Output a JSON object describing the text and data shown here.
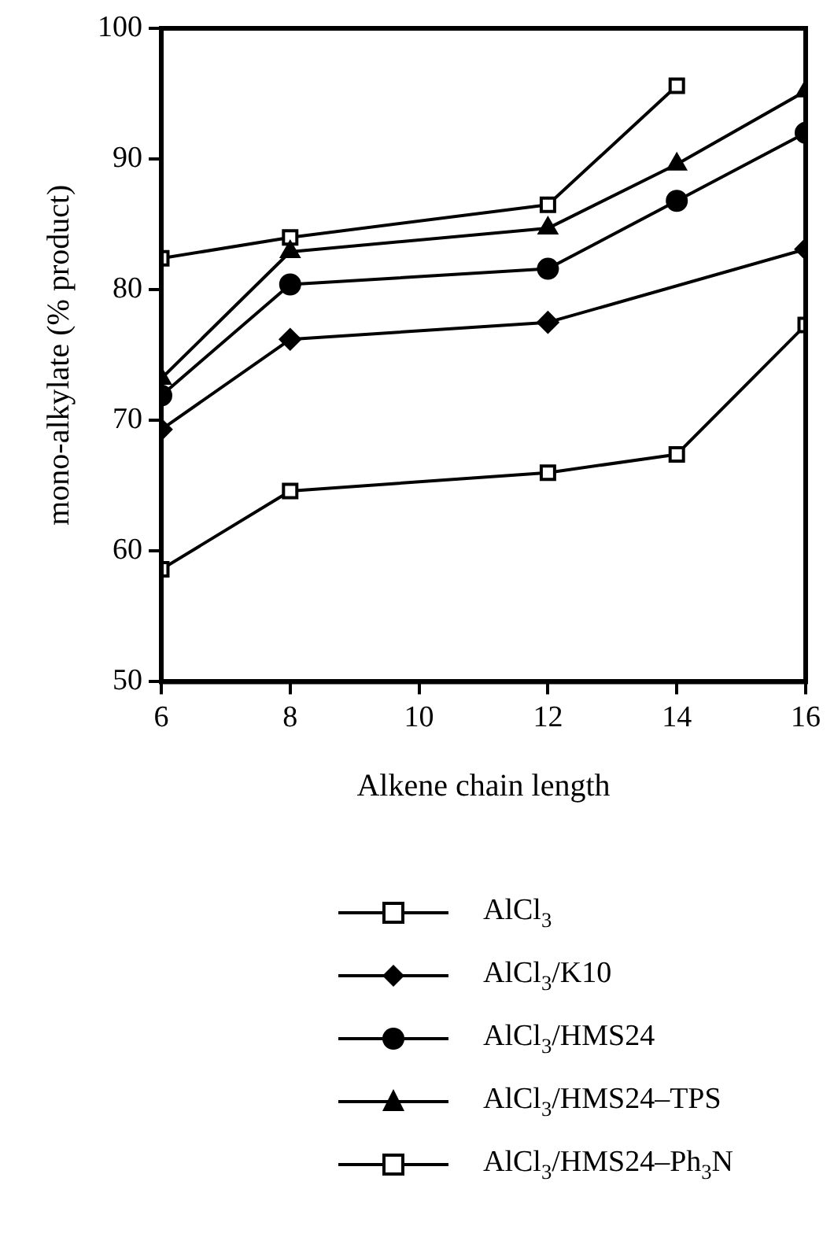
{
  "chart_data": {
    "type": "line",
    "xlabel": "Alkene chain length",
    "ylabel": "mono-alkylate (% product)",
    "xlim": [
      6,
      16
    ],
    "xticks": [
      6,
      8,
      10,
      12,
      14,
      16
    ],
    "ylim": [
      50,
      100
    ],
    "yticks": [
      50,
      60,
      70,
      80,
      90,
      100
    ],
    "grid": false,
    "legend": "bottom",
    "line_style": "solid",
    "series": [
      {
        "name": "AlCl$_{3}$",
        "color": "#000000",
        "marker": "square",
        "x": [
          6,
          8,
          12,
          14,
          16
        ],
        "values": [
          58.6,
          64.6,
          66.0,
          67.4,
          77.3
        ]
      },
      {
        "name": "AlCl$_{3}$/K10",
        "color": "#000000",
        "marker": "diamond",
        "x": [
          6,
          8,
          12,
          16
        ],
        "values": [
          69.3,
          76.2,
          77.5,
          83.1
        ]
      },
      {
        "name": "AlCl$_{3}$/HMS24",
        "color": "#000000",
        "marker": "circle",
        "x": [
          6,
          8,
          12,
          14,
          16
        ],
        "values": [
          71.9,
          80.4,
          81.6,
          86.8,
          92.0
        ]
      },
      {
        "name": "AlCl$_{3}$/HMS24–TPS",
        "color": "#000000",
        "marker": "triangle",
        "x": [
          6,
          8,
          12,
          14,
          16
        ],
        "values": [
          73.2,
          82.9,
          84.7,
          89.6,
          95.2
        ]
      },
      {
        "name": "AlCl$_{3}$/HMS24–Ph$_{3}$N",
        "color": "#000000",
        "marker": "square",
        "x": [
          6,
          8,
          12,
          14
        ],
        "values": [
          82.4,
          84.0,
          86.5,
          95.6
        ]
      }
    ]
  }
}
